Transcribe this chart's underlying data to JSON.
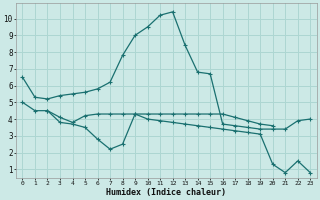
{
  "xlabel": "Humidex (Indice chaleur)",
  "background_color": "#cce9e6",
  "grid_color": "#add6d2",
  "line_color": "#1a7070",
  "line1_x": [
    0,
    1,
    2,
    3,
    4,
    5,
    6,
    7,
    8,
    9,
    10,
    11,
    12,
    13,
    14,
    15,
    16,
    17,
    18,
    19,
    20,
    21,
    22,
    23
  ],
  "line1_y": [
    6.5,
    5.3,
    5.2,
    5.4,
    5.5,
    5.6,
    5.8,
    6.2,
    7.8,
    9.0,
    9.5,
    10.2,
    10.4,
    8.4,
    6.8,
    6.7,
    3.7,
    3.6,
    3.5,
    3.4,
    3.4,
    3.4,
    3.9,
    4.0
  ],
  "line2_x": [
    0,
    1,
    2,
    3,
    4,
    5,
    6,
    7,
    8,
    9,
    10,
    11,
    12,
    13,
    14,
    15,
    16,
    17,
    18,
    19,
    20
  ],
  "line2_y": [
    5.0,
    4.5,
    4.5,
    4.1,
    3.8,
    4.2,
    4.3,
    4.3,
    4.3,
    4.3,
    4.3,
    4.3,
    4.3,
    4.3,
    4.3,
    4.3,
    4.3,
    4.1,
    3.9,
    3.7,
    3.6
  ],
  "line3_x": [
    2,
    3,
    4,
    5,
    6,
    7,
    8,
    9,
    10,
    11,
    12,
    13,
    14,
    15,
    16,
    17,
    18,
    19,
    20,
    21,
    22,
    23
  ],
  "line3_y": [
    4.5,
    3.8,
    3.7,
    3.5,
    2.8,
    2.2,
    2.5,
    4.3,
    4.0,
    3.9,
    3.8,
    3.7,
    3.6,
    3.5,
    3.4,
    3.3,
    3.2,
    3.1,
    1.3,
    0.8,
    1.5,
    0.8
  ],
  "ylim": [
    0.5,
    10.9
  ],
  "xlim": [
    -0.5,
    23.5
  ],
  "yticks": [
    1,
    2,
    3,
    4,
    5,
    6,
    7,
    8,
    9,
    10
  ]
}
